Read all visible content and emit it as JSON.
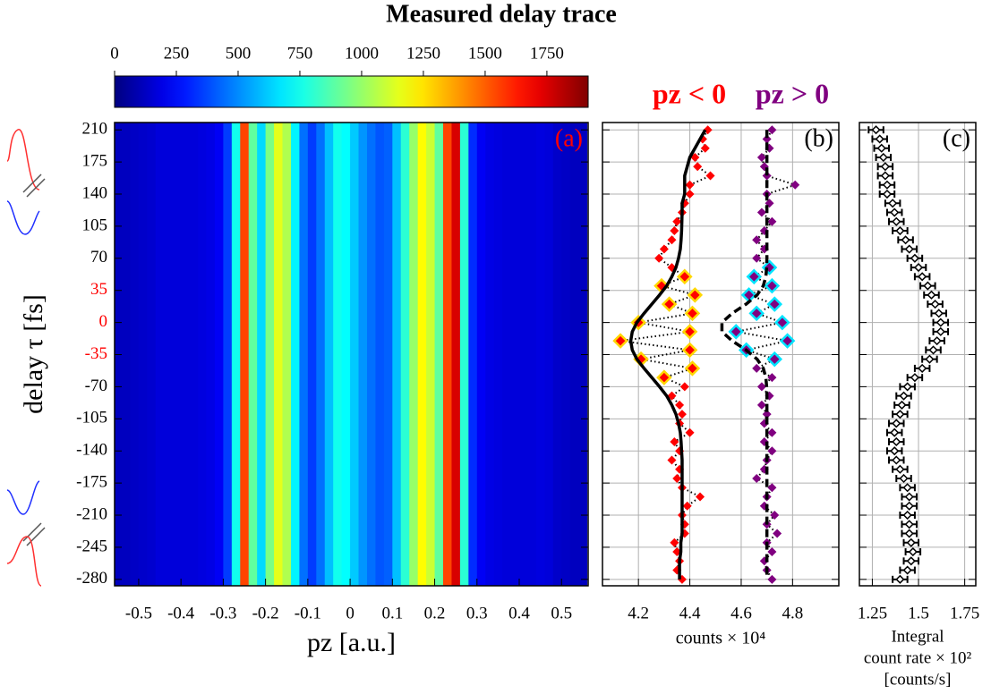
{
  "chart_data": [
    {
      "type": "heatmap",
      "title": "Measured delay trace",
      "xlabel": "pz [a.u.]",
      "ylabel": "delay τ [fs]",
      "panel_label": "(a)",
      "panel_label_color": "#ff0000",
      "colormap": "jet",
      "x": [
        -0.55,
        -0.53,
        -0.51,
        -0.49,
        -0.47,
        -0.45,
        -0.43,
        -0.41,
        -0.39,
        -0.37,
        -0.35,
        -0.33,
        -0.31,
        -0.29,
        -0.27,
        -0.25,
        -0.23,
        -0.21,
        -0.19,
        -0.17,
        -0.15,
        -0.13,
        -0.11,
        -0.09,
        -0.07,
        -0.05,
        -0.03,
        -0.01,
        0.01,
        0.03,
        0.05,
        0.07,
        0.09,
        0.11,
        0.13,
        0.15,
        0.17,
        0.19,
        0.21,
        0.23,
        0.25,
        0.27,
        0.29,
        0.31,
        0.33,
        0.35,
        0.37,
        0.39,
        0.41,
        0.43,
        0.45,
        0.47,
        0.49,
        0.51,
        0.53,
        0.55
      ],
      "values": [
        120,
        120,
        130,
        140,
        150,
        170,
        170,
        170,
        170,
        170,
        180,
        190,
        220,
        350,
        750,
        1550,
        900,
        650,
        950,
        1150,
        1050,
        700,
        450,
        350,
        450,
        600,
        750,
        720,
        620,
        520,
        450,
        400,
        420,
        600,
        800,
        1000,
        1200,
        1100,
        900,
        1550,
        1750,
        800,
        320,
        220,
        190,
        180,
        170,
        170,
        170,
        170,
        180,
        170,
        140,
        130,
        120,
        120
      ],
      "xlim": [
        -0.557,
        0.563
      ],
      "xticks": [
        -0.5,
        -0.4,
        -0.3,
        -0.2,
        -0.1,
        0,
        0.1,
        0.2,
        0.3,
        0.4,
        0.5
      ],
      "ylim": [
        -287,
        218
      ],
      "yticks": [
        210,
        175,
        140,
        105,
        70,
        35,
        0,
        -35,
        -70,
        -105,
        -140,
        -175,
        -210,
        -245,
        -280
      ],
      "ytick_colors": [
        "#000000",
        "#000000",
        "#000000",
        "#000000",
        "#000000",
        "#ff0000",
        "#ff0000",
        "#ff0000",
        "#000000",
        "#000000",
        "#000000",
        "#000000",
        "#000000",
        "#000000",
        "#000000"
      ],
      "clim": [
        0,
        1917
      ],
      "cticks": [
        0,
        250,
        500,
        750,
        1000,
        1250,
        1500,
        1750
      ]
    },
    {
      "type": "scatter",
      "panel_label": "(b)",
      "xlabel": "counts × 10⁴",
      "grid": true,
      "y": [
        210,
        200,
        190,
        180,
        170,
        160,
        150,
        140,
        130,
        120,
        110,
        100,
        90,
        80,
        70,
        60,
        50,
        40,
        30,
        20,
        10,
        0,
        -10,
        -20,
        -30,
        -40,
        -50,
        -60,
        -70,
        -80,
        -90,
        -100,
        -110,
        -120,
        -130,
        -140,
        -150,
        -160,
        -170,
        -180,
        -190,
        -200,
        -210,
        -220,
        -230,
        -240,
        -250,
        -260,
        -270,
        -280
      ],
      "xlim": [
        4.06,
        4.98
      ],
      "xticks": [
        4.2,
        4.4,
        4.6,
        4.8
      ],
      "ylim": [
        -287,
        218
      ],
      "yticks": [
        210,
        175,
        140,
        105,
        70,
        35,
        0,
        -35,
        -70,
        -105,
        -140,
        -175,
        -210,
        -245,
        -280
      ],
      "series": [
        {
          "name": "pz < 0",
          "color": "#ff0000",
          "marker": "diamond",
          "line": "dotted",
          "line_color": "#000000",
          "highlight_color": "#ffd700",
          "highlight_range": [
            -65,
            55
          ],
          "values": [
            4.47,
            4.45,
            4.46,
            4.42,
            4.43,
            4.48,
            4.4,
            4.4,
            4.38,
            4.37,
            4.35,
            4.34,
            4.33,
            4.3,
            4.28,
            4.33,
            4.38,
            4.29,
            4.42,
            4.32,
            4.41,
            4.2,
            4.4,
            4.13,
            4.4,
            4.21,
            4.41,
            4.3,
            4.38,
            4.33,
            4.36,
            4.37,
            4.36,
            4.4,
            4.34,
            4.36,
            4.33,
            4.36,
            4.35,
            4.37,
            4.44,
            4.39,
            4.37,
            4.38,
            4.38,
            4.34,
            4.35,
            4.36,
            4.35,
            4.37
          ]
        },
        {
          "name": "pz > 0",
          "color": "#800080",
          "marker": "diamond",
          "line": "dotted",
          "line_color": "#000000",
          "highlight_color": "#00e5ff",
          "highlight_range": [
            -45,
            60
          ],
          "values": [
            4.72,
            4.7,
            4.71,
            4.68,
            4.69,
            4.7,
            4.81,
            4.7,
            4.71,
            4.68,
            4.72,
            4.69,
            4.66,
            4.69,
            4.66,
            4.71,
            4.65,
            4.72,
            4.63,
            4.73,
            4.66,
            4.76,
            4.58,
            4.78,
            4.62,
            4.73,
            4.66,
            4.72,
            4.68,
            4.71,
            4.68,
            4.7,
            4.69,
            4.72,
            4.69,
            4.72,
            4.7,
            4.69,
            4.66,
            4.72,
            4.7,
            4.69,
            4.73,
            4.7,
            4.74,
            4.7,
            4.72,
            4.69,
            4.7,
            4.72
          ]
        },
        {
          "color": "#000000",
          "line": "solid",
          "values": [
            4.46,
            4.44,
            4.42,
            4.4,
            4.39,
            4.38,
            4.38,
            4.38,
            4.37,
            4.37,
            4.369,
            4.368,
            4.366,
            4.363,
            4.356,
            4.346,
            4.33,
            4.31,
            4.282,
            4.252,
            4.222,
            4.194,
            4.176,
            4.17,
            4.176,
            4.194,
            4.222,
            4.252,
            4.282,
            4.31,
            4.33,
            4.346,
            4.356,
            4.363,
            4.366,
            4.368,
            4.37,
            4.37,
            4.37,
            4.37,
            4.37,
            4.37,
            4.37,
            4.37,
            4.37,
            4.365,
            4.365,
            4.36,
            4.36,
            4.36
          ]
        },
        {
          "color": "#000000",
          "line": "dashed",
          "values": [
            4.7,
            4.7,
            4.7,
            4.7,
            4.7,
            4.7,
            4.7,
            4.7,
            4.7,
            4.7,
            4.7,
            4.7,
            4.7,
            4.7,
            4.7,
            4.699,
            4.696,
            4.686,
            4.662,
            4.619,
            4.565,
            4.525,
            4.525,
            4.565,
            4.619,
            4.662,
            4.686,
            4.696,
            4.699,
            4.7,
            4.7,
            4.7,
            4.7,
            4.7,
            4.7,
            4.7,
            4.7,
            4.7,
            4.7,
            4.7,
            4.7,
            4.7,
            4.7,
            4.7,
            4.7,
            4.7,
            4.7,
            4.7,
            4.7,
            4.7
          ]
        }
      ]
    },
    {
      "type": "errorbar",
      "panel_label": "(c)",
      "xlabel": [
        "Integral",
        "count rate × 10²",
        "[counts/s]"
      ],
      "grid": true,
      "color": "#000000",
      "y": [
        210,
        200,
        190,
        180,
        170,
        160,
        150,
        140,
        130,
        120,
        110,
        100,
        90,
        80,
        70,
        60,
        50,
        40,
        30,
        20,
        10,
        0,
        -10,
        -20,
        -30,
        -40,
        -50,
        -60,
        -70,
        -80,
        -90,
        -100,
        -110,
        -120,
        -130,
        -140,
        -150,
        -160,
        -170,
        -180,
        -190,
        -200,
        -210,
        -220,
        -230,
        -240,
        -250,
        -260,
        -270,
        -280
      ],
      "values": [
        1.27,
        1.29,
        1.3,
        1.31,
        1.32,
        1.32,
        1.33,
        1.33,
        1.36,
        1.37,
        1.38,
        1.4,
        1.43,
        1.45,
        1.48,
        1.5,
        1.52,
        1.55,
        1.57,
        1.59,
        1.61,
        1.62,
        1.62,
        1.6,
        1.58,
        1.56,
        1.52,
        1.48,
        1.44,
        1.42,
        1.41,
        1.4,
        1.38,
        1.37,
        1.38,
        1.37,
        1.38,
        1.4,
        1.42,
        1.44,
        1.45,
        1.45,
        1.44,
        1.45,
        1.45,
        1.46,
        1.47,
        1.46,
        1.44,
        1.4
      ],
      "errors": [
        0.04,
        0.04,
        0.04,
        0.04,
        0.04,
        0.04,
        0.04,
        0.04,
        0.04,
        0.04,
        0.04,
        0.04,
        0.04,
        0.04,
        0.04,
        0.04,
        0.04,
        0.04,
        0.04,
        0.04,
        0.04,
        0.04,
        0.04,
        0.04,
        0.04,
        0.04,
        0.04,
        0.04,
        0.04,
        0.04,
        0.04,
        0.04,
        0.04,
        0.04,
        0.04,
        0.04,
        0.04,
        0.04,
        0.04,
        0.04,
        0.04,
        0.04,
        0.04,
        0.04,
        0.04,
        0.04,
        0.04,
        0.04,
        0.04,
        0.04
      ],
      "xlim": [
        1.18,
        1.81
      ],
      "xticks": [
        1.25,
        1.5,
        1.75
      ],
      "ylim": [
        -287,
        218
      ],
      "yticks": [
        210,
        175,
        140,
        105,
        70,
        35,
        0,
        -35,
        -70,
        -105,
        -140,
        -175,
        -210,
        -245,
        -280
      ]
    }
  ]
}
